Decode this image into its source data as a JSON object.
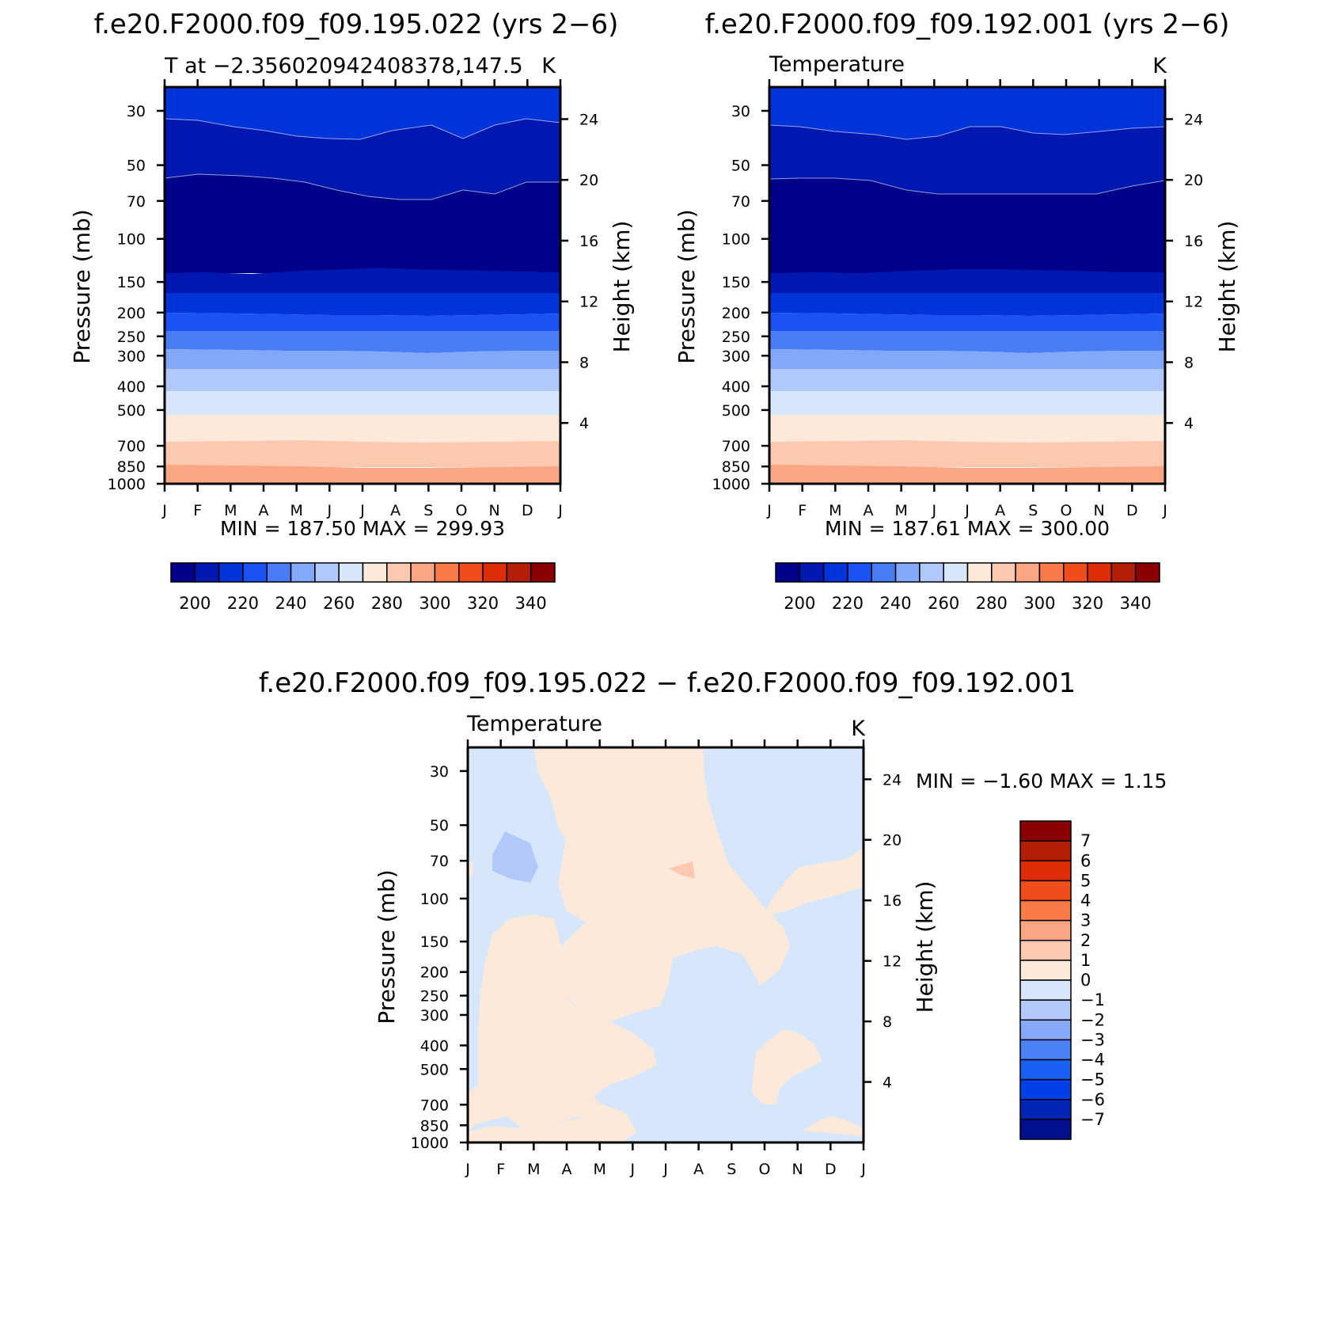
{
  "colors": {
    "abs_fill": [
      "#00008a",
      "#0017b0",
      "#0033da",
      "#1a53f3",
      "#4a7cf6",
      "#82a8fa",
      "#b1c8fc",
      "#d6e7fc",
      "#fde9d9",
      "#fcc9b0",
      "#fba682",
      "#fb7a4a",
      "#f04c1c",
      "#dc2c08",
      "#b21f06",
      "#8a0000"
    ],
    "diff_fill": [
      "#000f8c",
      "#0025b6",
      "#0040e6",
      "#1a60f5",
      "#4b82f6",
      "#86aaf9",
      "#b3c8fb",
      "#d6e7fc",
      "#fde9d9",
      "#fcc9b0",
      "#fba682",
      "#fb7a4a",
      "#f04c1c",
      "#dc2c08",
      "#b21f06",
      "#8a0000"
    ]
  },
  "chart_data": [
    {
      "type": "heatmap",
      "title": "f.e20.F2000.f09_f09.195.022 (yrs 2−6)",
      "left_label": "T at −2.356020942408378,147.5",
      "units": "K",
      "xlabel": "",
      "ylabel": "Pressure (mb)",
      "y2label": "Height (km)",
      "x_ticks": [
        "J",
        "F",
        "M",
        "A",
        "M",
        "J",
        "J",
        "A",
        "S",
        "O",
        "N",
        "D",
        "J"
      ],
      "y_ticks": [
        "30",
        "50",
        "70",
        "100",
        "150",
        "200",
        "250",
        "300",
        "400",
        "500",
        "700",
        "850",
        "1000"
      ],
      "y2_ticks": [
        "24",
        "20",
        "16",
        "12",
        "8",
        "4"
      ],
      "y_log_scale": true,
      "ylim": [
        1000,
        24
      ],
      "stats_text": "MIN =  187.50  MAX =  299.93",
      "min": 187.5,
      "max": 299.93,
      "contour_levels": [
        200,
        220,
        240,
        260,
        280,
        300,
        320,
        340
      ],
      "colorbar_labels": [
        "200",
        "220",
        "240",
        "260",
        "280",
        "300",
        "320",
        "340"
      ]
    },
    {
      "type": "heatmap",
      "title": "f.e20.F2000.f09_f09.192.001 (yrs 2−6)",
      "left_label": "Temperature",
      "units": "K",
      "xlabel": "",
      "ylabel": "Pressure (mb)",
      "y2label": "Height (km)",
      "x_ticks": [
        "J",
        "F",
        "M",
        "A",
        "M",
        "J",
        "J",
        "A",
        "S",
        "O",
        "N",
        "D",
        "J"
      ],
      "y_ticks": [
        "30",
        "50",
        "70",
        "100",
        "150",
        "200",
        "250",
        "300",
        "400",
        "500",
        "700",
        "850",
        "1000"
      ],
      "y2_ticks": [
        "24",
        "20",
        "16",
        "12",
        "8",
        "4"
      ],
      "y_log_scale": true,
      "ylim": [
        1000,
        24
      ],
      "stats_text": "MIN =  187.61  MAX =  300.00",
      "min": 187.61,
      "max": 300.0,
      "contour_levels": [
        200,
        220,
        240,
        260,
        280,
        300,
        320,
        340
      ],
      "colorbar_labels": [
        "200",
        "220",
        "240",
        "260",
        "280",
        "300",
        "320",
        "340"
      ]
    },
    {
      "type": "heatmap",
      "title": "f.e20.F2000.f09_f09.195.022 − f.e20.F2000.f09_f09.192.001",
      "left_label": "Temperature",
      "units": "K",
      "xlabel": "",
      "ylabel": "Pressure (mb)",
      "y2label": "Height (km)",
      "x_ticks": [
        "J",
        "F",
        "M",
        "A",
        "M",
        "J",
        "J",
        "A",
        "S",
        "O",
        "N",
        "D",
        "J"
      ],
      "y_ticks": [
        "30",
        "50",
        "70",
        "100",
        "150",
        "200",
        "250",
        "300",
        "400",
        "500",
        "700",
        "850",
        "1000"
      ],
      "y2_ticks": [
        "24",
        "20",
        "16",
        "12",
        "8",
        "4"
      ],
      "y_log_scale": true,
      "ylim": [
        1000,
        24
      ],
      "stats_text": "MIN =   −1.60  MAX =     1.15",
      "min": -1.6,
      "max": 1.15,
      "contour_levels": [
        -7,
        -6,
        -5,
        -4,
        -3,
        -2,
        -1,
        0,
        1,
        2,
        3,
        4,
        5,
        6,
        7
      ],
      "colorbar_labels": [
        "7",
        "6",
        "5",
        "4",
        "3",
        "2",
        "1",
        "0",
        "−1",
        "−2",
        "−3",
        "−4",
        "−5",
        "−6",
        "−7"
      ]
    }
  ]
}
